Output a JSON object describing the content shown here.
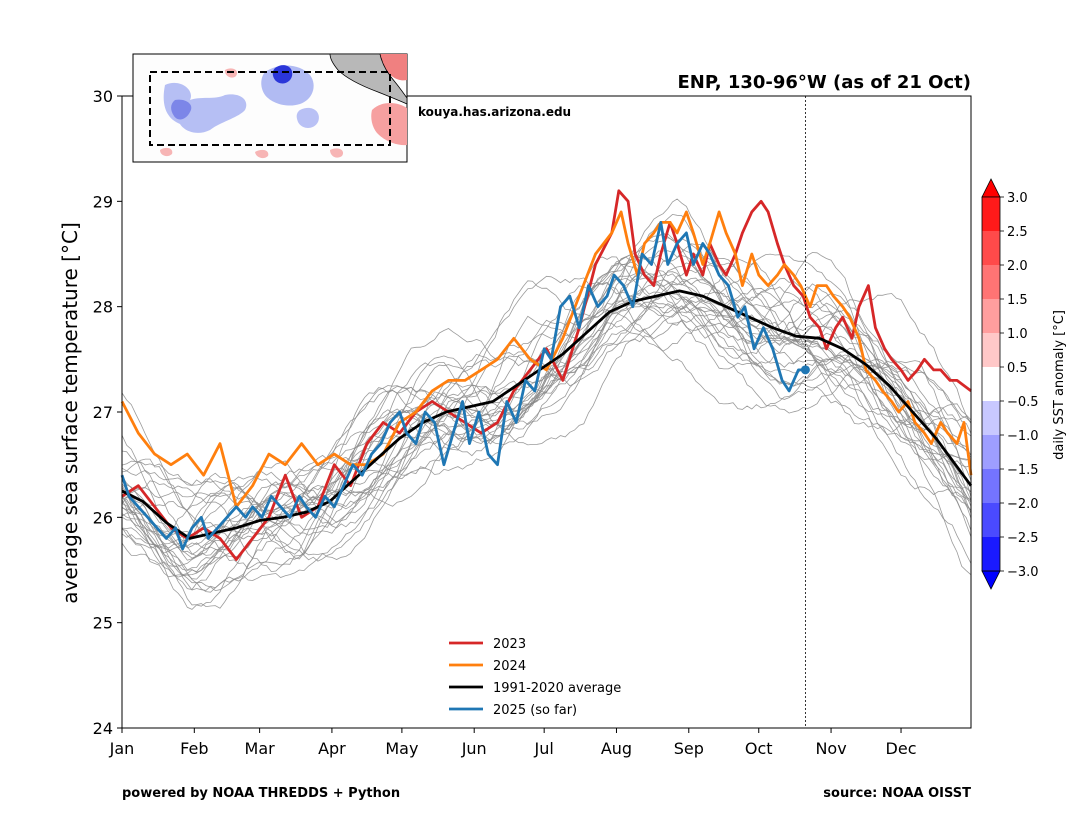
{
  "chart_data": {
    "type": "line",
    "title": "ENP, 130-96°W (as of 21 Oct)",
    "xlabel": "",
    "ylabel": "average sea surface temperature [°C]",
    "ylim": [
      24,
      30
    ],
    "xlim_days": [
      1,
      365
    ],
    "yticks": [
      "24",
      "25",
      "26",
      "27",
      "28",
      "29",
      "30"
    ],
    "ytick_values": [
      24,
      25,
      26,
      27,
      28,
      29,
      30
    ],
    "months": [
      "Jan",
      "Feb",
      "Mar",
      "Apr",
      "May",
      "Jun",
      "Jul",
      "Aug",
      "Sep",
      "Oct",
      "Nov",
      "Dec"
    ],
    "month_start_days": [
      1,
      32,
      60,
      91,
      121,
      152,
      182,
      213,
      244,
      274,
      305,
      335
    ],
    "current_day": 294,
    "series": [
      {
        "name": "2023",
        "color": "#d62728",
        "days": [
          1,
          8,
          15,
          22,
          29,
          36,
          43,
          50,
          57,
          64,
          71,
          78,
          85,
          92,
          99,
          106,
          113,
          120,
          127,
          134,
          141,
          148,
          155,
          162,
          169,
          176,
          183,
          190,
          197,
          204,
          211,
          214,
          218,
          221,
          225,
          229,
          232,
          236,
          239,
          243,
          246,
          250,
          253,
          257,
          260,
          264,
          267,
          271,
          275,
          278,
          282,
          285,
          289,
          293,
          296,
          300,
          303,
          307,
          310,
          314,
          317,
          321,
          324,
          328,
          331,
          335,
          338,
          342,
          345,
          349,
          352,
          356,
          359,
          365
        ],
        "values": [
          26.2,
          26.3,
          26.1,
          25.9,
          25.8,
          25.9,
          25.8,
          25.6,
          25.8,
          26.0,
          26.4,
          26.0,
          26.1,
          26.5,
          26.3,
          26.7,
          26.9,
          26.8,
          27.0,
          27.1,
          27.0,
          26.9,
          26.8,
          26.9,
          27.2,
          27.4,
          27.6,
          27.3,
          27.8,
          28.4,
          28.7,
          29.1,
          29.0,
          28.5,
          28.3,
          28.2,
          28.5,
          28.8,
          28.6,
          28.3,
          28.5,
          28.3,
          28.6,
          28.4,
          28.3,
          28.5,
          28.7,
          28.9,
          29.0,
          28.9,
          28.6,
          28.4,
          28.2,
          28.1,
          27.9,
          27.8,
          27.6,
          27.8,
          27.9,
          27.7,
          28.0,
          28.2,
          27.8,
          27.6,
          27.5,
          27.4,
          27.3,
          27.4,
          27.5,
          27.4,
          27.4,
          27.3,
          27.3,
          27.2
        ]
      },
      {
        "name": "2024",
        "color": "#ff7f0e",
        "days": [
          1,
          8,
          15,
          22,
          29,
          36,
          43,
          50,
          57,
          64,
          71,
          78,
          85,
          92,
          99,
          106,
          113,
          120,
          127,
          134,
          141,
          148,
          155,
          162,
          169,
          176,
          183,
          190,
          197,
          204,
          211,
          215,
          218,
          222,
          225,
          229,
          232,
          236,
          239,
          243,
          246,
          250,
          253,
          257,
          260,
          264,
          267,
          271,
          274,
          278,
          282,
          285,
          289,
          292,
          296,
          299,
          303,
          306,
          310,
          313,
          317,
          320,
          324,
          327,
          331,
          334,
          338,
          341,
          345,
          348,
          352,
          355,
          359,
          362,
          365
        ],
        "values": [
          27.1,
          26.8,
          26.6,
          26.5,
          26.6,
          26.4,
          26.7,
          26.1,
          26.3,
          26.6,
          26.5,
          26.7,
          26.5,
          26.6,
          26.5,
          26.5,
          26.6,
          26.9,
          27.0,
          27.2,
          27.3,
          27.3,
          27.4,
          27.5,
          27.7,
          27.5,
          27.4,
          27.7,
          28.1,
          28.5,
          28.7,
          28.9,
          28.6,
          28.3,
          28.6,
          28.7,
          28.8,
          28.8,
          28.7,
          28.9,
          28.7,
          28.4,
          28.6,
          28.9,
          28.7,
          28.5,
          28.2,
          28.5,
          28.3,
          28.2,
          28.3,
          28.4,
          28.3,
          28.2,
          28.0,
          28.2,
          28.2,
          28.1,
          28.0,
          27.9,
          27.7,
          27.4,
          27.3,
          27.2,
          27.1,
          27.0,
          27.1,
          26.9,
          26.8,
          26.7,
          26.9,
          26.8,
          26.7,
          26.9,
          26.4
        ]
      },
      {
        "name": "1991-2020 average",
        "color": "#000000",
        "days": [
          1,
          10,
          20,
          30,
          40,
          50,
          60,
          70,
          80,
          90,
          100,
          110,
          120,
          130,
          140,
          150,
          160,
          170,
          180,
          190,
          200,
          210,
          220,
          230,
          240,
          250,
          260,
          270,
          280,
          290,
          300,
          310,
          320,
          330,
          340,
          350,
          365
        ],
        "values": [
          26.25,
          26.15,
          25.95,
          25.8,
          25.85,
          25.9,
          25.97,
          26.0,
          26.05,
          26.15,
          26.35,
          26.55,
          26.75,
          26.9,
          27.0,
          27.05,
          27.1,
          27.25,
          27.4,
          27.55,
          27.75,
          27.95,
          28.05,
          28.1,
          28.15,
          28.1,
          28.0,
          27.9,
          27.8,
          27.72,
          27.7,
          27.6,
          27.45,
          27.25,
          27.0,
          26.75,
          26.3
        ]
      },
      {
        "name": "2025 (so far)",
        "color": "#1f77b4",
        "days": [
          1,
          4,
          8,
          12,
          16,
          20,
          24,
          27,
          31,
          35,
          38,
          42,
          46,
          50,
          54,
          57,
          61,
          65,
          69,
          73,
          77,
          80,
          84,
          88,
          92,
          96,
          100,
          104,
          108,
          112,
          116,
          120,
          123,
          127,
          131,
          135,
          139,
          143,
          147,
          150,
          154,
          158,
          162,
          166,
          170,
          174,
          178,
          182,
          185,
          189,
          193,
          197,
          201,
          205,
          209,
          212,
          216,
          220,
          224,
          228,
          232,
          235,
          239,
          243,
          246,
          250,
          253,
          257,
          261,
          265,
          268,
          272,
          276,
          280,
          284,
          287,
          291,
          294
        ],
        "values": [
          26.4,
          26.2,
          26.1,
          26.0,
          25.9,
          25.8,
          25.9,
          25.7,
          25.9,
          26.0,
          25.8,
          25.9,
          26.0,
          26.1,
          26.0,
          26.1,
          26.0,
          26.2,
          26.1,
          26.0,
          26.2,
          26.1,
          26.0,
          26.2,
          26.1,
          26.3,
          26.5,
          26.4,
          26.6,
          26.7,
          26.9,
          27.0,
          26.8,
          26.7,
          27.0,
          26.9,
          26.5,
          26.8,
          27.1,
          26.7,
          27.0,
          26.6,
          26.5,
          27.1,
          26.9,
          27.3,
          27.2,
          27.6,
          27.5,
          28.0,
          28.1,
          27.8,
          28.2,
          28.0,
          28.1,
          28.3,
          28.2,
          28.0,
          28.5,
          28.4,
          28.8,
          28.4,
          28.6,
          28.7,
          28.4,
          28.6,
          28.5,
          28.3,
          28.2,
          27.9,
          28.0,
          27.6,
          27.8,
          27.6,
          27.3,
          27.2,
          27.4,
          27.4
        ]
      }
    ],
    "gray_series_count": 30,
    "legend": [
      "2023",
      "2024",
      "1991-2020 average",
      "2025 (so far)"
    ],
    "legend_position": "lower-center",
    "grid": false
  },
  "colorbar": {
    "label": "daily SST anomaly [°C]",
    "ticks": [
      "3.0",
      "2.5",
      "2.0",
      "1.5",
      "1.0",
      "0.5",
      "−0.5",
      "−1.0",
      "−1.5",
      "−2.0",
      "−2.5",
      "−3.0"
    ],
    "colors": [
      "#ff1a1a",
      "#ff4a4a",
      "#ff7474",
      "#ff9e9e",
      "#ffc8c8",
      "#ffffff",
      "#c8c8ff",
      "#9e9eff",
      "#7474ff",
      "#4a4aff",
      "#1a1aff"
    ],
    "extend_top_color": "#ff0000",
    "extend_bottom_color": "#0000ff"
  },
  "inset": {
    "credit": "kouya.has.arizona.edu"
  },
  "footer": {
    "left": "powered by NOAA THREDDS + Python",
    "right": "source: NOAA OISST"
  }
}
